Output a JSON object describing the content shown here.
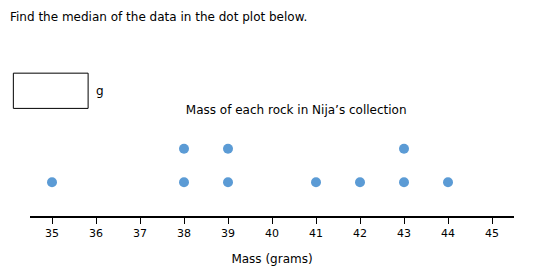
{
  "chart_data": {
    "type": "dot",
    "title": "Mass of each rock in Nija’s collection",
    "xlabel": "Mass (grams)",
    "annotations": [
      "Find the median of the data in the dot plot below.",
      "g"
    ],
    "x": [
      35,
      38,
      39,
      41,
      42,
      43,
      44
    ],
    "values": [
      1,
      2,
      2,
      1,
      1,
      2,
      1
    ],
    "color": "#5b9bd5",
    "xlim": [
      34.5,
      45.5
    ],
    "xticks": [
      35,
      36,
      37,
      38,
      39,
      40,
      41,
      42,
      43,
      44,
      45
    ],
    "ylim": [
      0,
      3
    ],
    "grid": false,
    "tick_labels": "x"
  }
}
